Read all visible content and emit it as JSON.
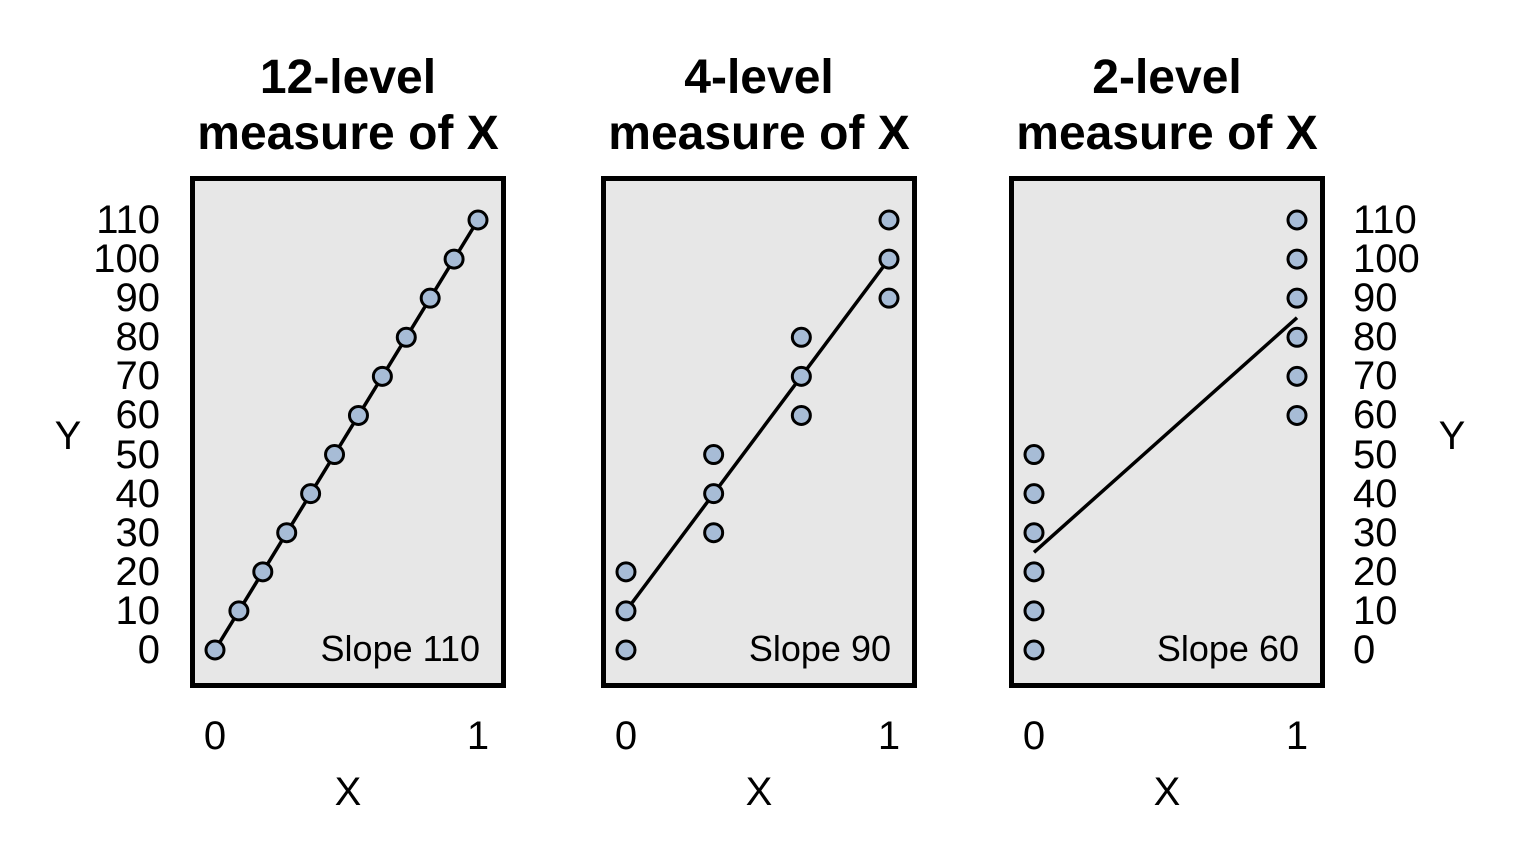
{
  "colors": {
    "page_background": "#ffffff",
    "plot_background": "#e7e7e7",
    "frame": "#000000",
    "point_fill": "#a7bcd6",
    "point_stroke": "#000000",
    "fit_line": "#000000",
    "text": "#000000"
  },
  "shared_axes": {
    "y_label": "Y",
    "x_label": "X",
    "y_ticks": [
      110,
      100,
      90,
      80,
      70,
      60,
      50,
      40,
      30,
      20,
      10,
      0
    ],
    "x_ticks": [
      "0",
      "1"
    ]
  },
  "chart_data": [
    {
      "type": "scatter",
      "title": "12-level measure of X",
      "title_lines": [
        "12-level",
        "measure of X"
      ],
      "xlabel": "X",
      "ylabel": "Y",
      "xlim": [
        0,
        1
      ],
      "ylim": [
        0,
        110
      ],
      "x_tick_labels": [
        "0",
        "1"
      ],
      "y_tick_values": [
        110,
        100,
        90,
        80,
        70,
        60,
        50,
        40,
        30,
        20,
        10,
        0
      ],
      "y_axis_side": "left",
      "slope_label": "Slope 110",
      "fit_line": {
        "slope": 110,
        "intercept": 0,
        "from": [
          0,
          0
        ],
        "to": [
          1,
          110
        ]
      },
      "points": [
        [
          0,
          0
        ],
        [
          0.0909,
          10
        ],
        [
          0.1818,
          20
        ],
        [
          0.2727,
          30
        ],
        [
          0.3636,
          40
        ],
        [
          0.4545,
          50
        ],
        [
          0.5455,
          60
        ],
        [
          0.6364,
          70
        ],
        [
          0.7273,
          80
        ],
        [
          0.8182,
          90
        ],
        [
          0.9091,
          100
        ],
        [
          1,
          110
        ]
      ]
    },
    {
      "type": "scatter",
      "title": "4-level measure of X",
      "title_lines": [
        "4-level",
        "measure of X"
      ],
      "xlabel": "X",
      "ylabel": "Y",
      "xlim": [
        0,
        1
      ],
      "ylim": [
        0,
        110
      ],
      "x_tick_labels": [
        "0",
        "1"
      ],
      "y_tick_values": [],
      "y_axis_side": "none",
      "slope_label": "Slope 90",
      "fit_line": {
        "slope": 90,
        "intercept": 10,
        "from": [
          0,
          10
        ],
        "to": [
          1,
          100
        ]
      },
      "points": [
        [
          0,
          0
        ],
        [
          0,
          10
        ],
        [
          0,
          20
        ],
        [
          0.3333,
          30
        ],
        [
          0.3333,
          40
        ],
        [
          0.3333,
          50
        ],
        [
          0.6667,
          60
        ],
        [
          0.6667,
          70
        ],
        [
          0.6667,
          80
        ],
        [
          1,
          90
        ],
        [
          1,
          100
        ],
        [
          1,
          110
        ]
      ]
    },
    {
      "type": "scatter",
      "title": "2-level measure of X",
      "title_lines": [
        "2-level",
        "measure of X"
      ],
      "xlabel": "X",
      "ylabel": "Y",
      "xlim": [
        0,
        1
      ],
      "ylim": [
        0,
        110
      ],
      "x_tick_labels": [
        "0",
        "1"
      ],
      "y_tick_values": [
        110,
        100,
        90,
        80,
        70,
        60,
        50,
        40,
        30,
        20,
        10,
        0
      ],
      "y_axis_side": "right",
      "slope_label": "Slope 60",
      "fit_line": {
        "slope": 60,
        "intercept": 25,
        "from": [
          0,
          25
        ],
        "to": [
          1,
          85
        ]
      },
      "points": [
        [
          0,
          0
        ],
        [
          0,
          10
        ],
        [
          0,
          20
        ],
        [
          0,
          30
        ],
        [
          0,
          40
        ],
        [
          0,
          50
        ],
        [
          1,
          60
        ],
        [
          1,
          70
        ],
        [
          1,
          80
        ],
        [
          1,
          90
        ],
        [
          1,
          100
        ],
        [
          1,
          110
        ]
      ]
    }
  ]
}
